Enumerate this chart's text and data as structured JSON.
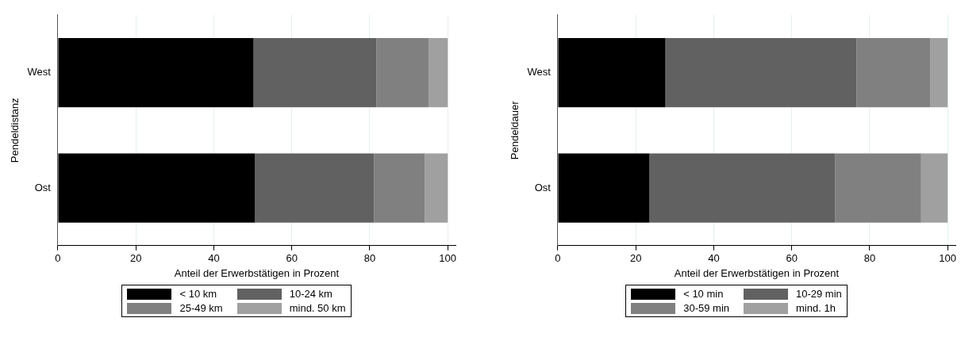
{
  "chart_data": [
    {
      "type": "bar",
      "orientation": "horizontal",
      "stacked": true,
      "ylabel": "Pendeldistanz",
      "xlabel": "Anteil der Erwerbstätigen in Prozent",
      "categories": [
        "West",
        "Ost"
      ],
      "xlim": [
        0,
        102
      ],
      "xticks": [
        0,
        20,
        40,
        60,
        80,
        100
      ],
      "grid": "x",
      "legend": "bottom",
      "series": [
        {
          "name": "< 10 km",
          "color": "#000000",
          "values": [
            50.2,
            50.5
          ]
        },
        {
          "name": "10-24 km",
          "color": "#616161",
          "values": [
            31.5,
            30.6
          ]
        },
        {
          "name": "25-49 km",
          "color": "#808080",
          "values": [
            13.4,
            13.0
          ]
        },
        {
          "name": "mind. 50 km",
          "color": "#a0a0a0",
          "values": [
            4.9,
            5.9
          ]
        }
      ]
    },
    {
      "type": "bar",
      "orientation": "horizontal",
      "stacked": true,
      "ylabel": "Pendeldauer",
      "xlabel": "Anteil der Erwerbstätigen in Prozent",
      "categories": [
        "West",
        "Ost"
      ],
      "xlim": [
        0,
        102
      ],
      "xticks": [
        0,
        20,
        40,
        60,
        80,
        100
      ],
      "grid": "x",
      "legend": "bottom",
      "series": [
        {
          "name": "< 10 min",
          "color": "#000000",
          "values": [
            27.6,
            23.5
          ]
        },
        {
          "name": "10-29 min",
          "color": "#616161",
          "values": [
            49.0,
            47.6
          ]
        },
        {
          "name": "30-59 min",
          "color": "#808080",
          "values": [
            19.0,
            22.1
          ]
        },
        {
          "name": "mind. 1h",
          "color": "#a0a0a0",
          "values": [
            4.4,
            6.8
          ]
        }
      ]
    }
  ]
}
